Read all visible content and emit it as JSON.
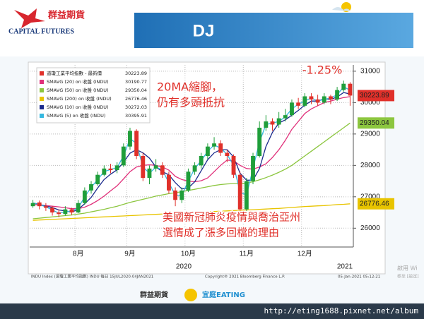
{
  "header": {
    "logo_name": "群益期貨",
    "logo_sub": "CAPITAL FUTURES",
    "title": "DJ"
  },
  "chart_data": {
    "type": "candlestick",
    "name": "道瓊工業平均指數 - 最新價",
    "up_color": "#1f9e3a",
    "down_color": "#e0302a",
    "categories": [
      null,
      null,
      null,
      null,
      null,
      null,
      null,
      "8月",
      null,
      null,
      null,
      null,
      null,
      null,
      null,
      "9月",
      null,
      null,
      null,
      null,
      null,
      null,
      null,
      null,
      "10月",
      null,
      null,
      null,
      null,
      null,
      null,
      null,
      null,
      "11月",
      null,
      null,
      null,
      null,
      null,
      null,
      null,
      null,
      "12月",
      null,
      null,
      null,
      null,
      null,
      null,
      null
    ],
    "years": [
      "2020",
      "2021"
    ],
    "candles": [
      {
        "o": 26700,
        "h": 26900,
        "l": 26650,
        "c": 26800
      },
      {
        "o": 26820,
        "h": 26880,
        "l": 26600,
        "c": 26700
      },
      {
        "o": 26700,
        "h": 26800,
        "l": 26550,
        "c": 26650
      },
      {
        "o": 26650,
        "h": 26700,
        "l": 26400,
        "c": 26500
      },
      {
        "o": 26500,
        "h": 26600,
        "l": 26350,
        "c": 26450
      },
      {
        "o": 26450,
        "h": 26700,
        "l": 26400,
        "c": 26600
      },
      {
        "o": 26600,
        "h": 26650,
        "l": 26420,
        "c": 26500
      },
      {
        "o": 26500,
        "h": 26900,
        "l": 26480,
        "c": 26800
      },
      {
        "o": 26800,
        "h": 27300,
        "l": 26750,
        "c": 27200
      },
      {
        "o": 27200,
        "h": 27500,
        "l": 27100,
        "c": 27400
      },
      {
        "o": 27400,
        "h": 27800,
        "l": 27350,
        "c": 27700
      },
      {
        "o": 27700,
        "h": 28000,
        "l": 27650,
        "c": 27900
      },
      {
        "o": 27900,
        "h": 28050,
        "l": 27750,
        "c": 27850
      },
      {
        "o": 27850,
        "h": 28100,
        "l": 27750,
        "c": 28000
      },
      {
        "o": 28000,
        "h": 28700,
        "l": 27950,
        "c": 28600
      },
      {
        "o": 28600,
        "h": 29200,
        "l": 28500,
        "c": 29100
      },
      {
        "o": 29100,
        "h": 29150,
        "l": 28200,
        "c": 28300
      },
      {
        "o": 28300,
        "h": 28400,
        "l": 27500,
        "c": 27600
      },
      {
        "o": 27600,
        "h": 28000,
        "l": 27400,
        "c": 27900
      },
      {
        "o": 27900,
        "h": 28200,
        "l": 27800,
        "c": 28000
      },
      {
        "o": 28000,
        "h": 28100,
        "l": 27600,
        "c": 27700
      },
      {
        "o": 27700,
        "h": 27800,
        "l": 27100,
        "c": 27200
      },
      {
        "o": 27200,
        "h": 27300,
        "l": 26700,
        "c": 26900
      },
      {
        "o": 26900,
        "h": 27300,
        "l": 26800,
        "c": 27200
      },
      {
        "o": 27200,
        "h": 27900,
        "l": 27150,
        "c": 27800
      },
      {
        "o": 27800,
        "h": 28100,
        "l": 27700,
        "c": 28000
      },
      {
        "o": 28000,
        "h": 28400,
        "l": 27900,
        "c": 28300
      },
      {
        "o": 28300,
        "h": 28700,
        "l": 28200,
        "c": 28600
      },
      {
        "o": 28600,
        "h": 28900,
        "l": 28500,
        "c": 28700
      },
      {
        "o": 28700,
        "h": 28800,
        "l": 28300,
        "c": 28400
      },
      {
        "o": 28400,
        "h": 28500,
        "l": 28100,
        "c": 28300
      },
      {
        "o": 28300,
        "h": 28350,
        "l": 27600,
        "c": 27700
      },
      {
        "o": 27700,
        "h": 27800,
        "l": 26500,
        "c": 26600
      },
      {
        "o": 26600,
        "h": 27600,
        "l": 26550,
        "c": 27500
      },
      {
        "o": 27500,
        "h": 28400,
        "l": 27400,
        "c": 28300
      },
      {
        "o": 28300,
        "h": 29400,
        "l": 28250,
        "c": 29200
      },
      {
        "o": 29200,
        "h": 29600,
        "l": 29100,
        "c": 29400
      },
      {
        "o": 29400,
        "h": 29500,
        "l": 29100,
        "c": 29300
      },
      {
        "o": 29300,
        "h": 29700,
        "l": 29200,
        "c": 29500
      },
      {
        "o": 29500,
        "h": 29800,
        "l": 29400,
        "c": 29600
      },
      {
        "o": 29600,
        "h": 30100,
        "l": 29550,
        "c": 30000
      },
      {
        "o": 30000,
        "h": 30150,
        "l": 29800,
        "c": 29900
      },
      {
        "o": 29900,
        "h": 30300,
        "l": 29850,
        "c": 30200
      },
      {
        "o": 30200,
        "h": 30300,
        "l": 29950,
        "c": 30100
      },
      {
        "o": 30100,
        "h": 30250,
        "l": 29900,
        "c": 30000
      },
      {
        "o": 30000,
        "h": 30300,
        "l": 29950,
        "c": 30200
      },
      {
        "o": 30200,
        "h": 30250,
        "l": 29950,
        "c": 30100
      },
      {
        "o": 30100,
        "h": 30500,
        "l": 30050,
        "c": 30400
      },
      {
        "o": 30400,
        "h": 30700,
        "l": 30350,
        "c": 30600
      },
      {
        "o": 30600,
        "h": 30650,
        "l": 29900,
        "c": 30223.89
      }
    ],
    "series": [
      {
        "name": "SMAVG (20) on 收盤 (INDU)",
        "color": "#e0307a",
        "values": [
          26750,
          26740,
          26720,
          26700,
          26680,
          26650,
          26620,
          26620,
          26670,
          26760,
          26880,
          27020,
          27190,
          27350,
          27570,
          27800,
          27950,
          28000,
          28020,
          28000,
          27950,
          27850,
          27650,
          27550,
          27500,
          27480,
          27510,
          27600,
          27800,
          28000,
          28170,
          28150,
          28000,
          27900,
          27880,
          27950,
          28050,
          28250,
          28500,
          28800,
          29150,
          29400,
          29650,
          29800,
          29900,
          30000,
          30050,
          30110,
          30160,
          30190.77
        ]
      },
      {
        "name": "SMAVG (50) on 收盤 (INDU)",
        "color": "#8cc63f",
        "values": [
          26300,
          26320,
          26340,
          26360,
          26380,
          26400,
          26420,
          26450,
          26480,
          26520,
          26560,
          26600,
          26650,
          26700,
          26760,
          26820,
          26870,
          26920,
          26970,
          27020,
          27060,
          27100,
          27130,
          27160,
          27200,
          27240,
          27280,
          27320,
          27360,
          27390,
          27410,
          27420,
          27420,
          27440,
          27480,
          27540,
          27610,
          27690,
          27780,
          27880,
          28000,
          28150,
          28300,
          28450,
          28600,
          28750,
          28900,
          29050,
          29200,
          29350.04
        ]
      },
      {
        "name": "SMAVG (200) on 收盤 (INDU)",
        "color": "#e8c400",
        "values": [
          26250,
          26260,
          26270,
          26280,
          26290,
          26300,
          26310,
          26320,
          26330,
          26340,
          26350,
          26360,
          26370,
          26380,
          26390,
          26400,
          26410,
          26420,
          26430,
          26440,
          26450,
          26460,
          26470,
          26480,
          26490,
          26500,
          26510,
          26520,
          26530,
          26540,
          26550,
          26560,
          26570,
          26580,
          26590,
          26600,
          26610,
          26620,
          26630,
          26645,
          26660,
          26675,
          26690,
          26700,
          26710,
          26720,
          26735,
          26750,
          26760,
          26776.46
        ]
      },
      {
        "name": "SMAVG (10) on 收盤 (INDU)",
        "color": "#1a2a8c",
        "values": [
          26800,
          26760,
          26700,
          26660,
          26580,
          26550,
          26510,
          26600,
          26780,
          26980,
          27280,
          27550,
          27720,
          27860,
          28100,
          28390,
          28500,
          28400,
          28230,
          27950,
          27800,
          27700,
          27450,
          27250,
          27280,
          27480,
          27830,
          28180,
          28400,
          28500,
          28500,
          28270,
          27750,
          27530,
          27530,
          27900,
          28600,
          29050,
          29350,
          29450,
          29600,
          29750,
          29920,
          30050,
          30050,
          30120,
          30100,
          30180,
          30320,
          30272.03
        ]
      },
      {
        "name": "SMAVG (5) on 收盤 (INDU)",
        "color": "#35b8e0",
        "values": [
          26800,
          26750,
          26680,
          26580,
          26480,
          26520,
          26550,
          26650,
          27000,
          27300,
          27550,
          27800,
          27870,
          27930,
          28300,
          28850,
          28700,
          27950,
          27750,
          27950,
          27850,
          27450,
          27050,
          27050,
          27500,
          27900,
          28150,
          28450,
          28650,
          28550,
          28350,
          28000,
          27150,
          27050,
          27900,
          28750,
          29300,
          29350,
          29400,
          29550,
          29800,
          29950,
          30050,
          30150,
          30050,
          30100,
          30150,
          30250,
          30500,
          30395.91
        ]
      }
    ],
    "ylim": [
      25400,
      31200
    ],
    "yticks": [
      26000,
      27000,
      28000,
      29000,
      30000,
      31000
    ],
    "grid": true,
    "annotations": [
      "-1.25%",
      "20MA縮腳，",
      "仍有多頭抵抗",
      "美國新冠肺炎疫情與喬治亞州",
      "選情成了漲多回檔的理由"
    ],
    "source": [
      "INDU Index (道瓊工業平均指數) INDU 每日 15JUL2020-04JAN2021",
      "Copyright® 2021 Bloomberg Finance L.P.",
      "05-Jan-2021 05:12:21"
    ]
  },
  "watermark": [
    "啟用 Wi",
    "移至 [設定]"
  ],
  "footer": {
    "brand": "群益期貨",
    "host": "宜庭EATING",
    "url": "http://eting1688.pixnet.net/album"
  }
}
